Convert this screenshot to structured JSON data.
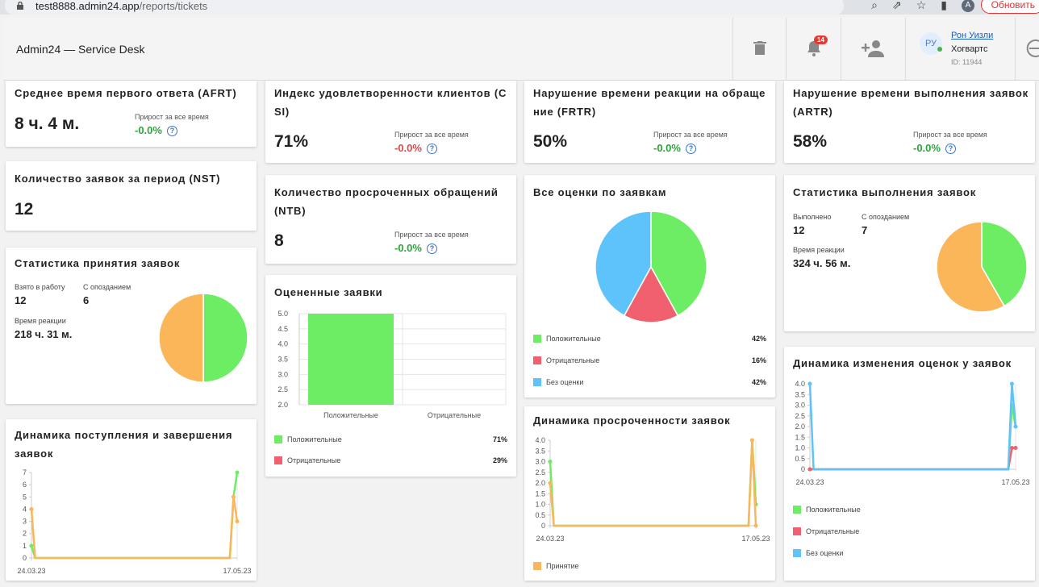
{
  "browser": {
    "url_host": "test8888.admin24.app",
    "url_path": "/reports/tickets",
    "profile_letter": "A",
    "refresh_label": "Обновить"
  },
  "header": {
    "title": "Admin24 — Service Desk",
    "notif_count": "14",
    "user": {
      "initials": "РУ",
      "name": "Рон Уизли",
      "org": "Хогвартс",
      "id": "ID: 11944"
    }
  },
  "growth_label": "Прирост за все время",
  "afrt": {
    "title": "Среднее время первого ответа (AFRT)",
    "value": "8 ч. 4 м.",
    "growth": "-0.0%"
  },
  "csi": {
    "title": "Индекс удовлетворенности клиентов (CSI)",
    "value": "71%",
    "growth": "-0.0%"
  },
  "frtr": {
    "title": "Нарушение времени реакции на обращение (FRTR)",
    "value": "50%",
    "growth": "-0.0%"
  },
  "artr": {
    "title": "Нарушение времени выполнения заявок (ARTR)",
    "value": "58%",
    "growth": "-0.0%"
  },
  "nst": {
    "title": "Количество заявок за период (NST)",
    "value": "12"
  },
  "ntb": {
    "title": "Количество просроченных обращений (NTB)",
    "value": "8",
    "growth": "-0.0%"
  },
  "accept_stats": {
    "title": "Статистика принятия заявок",
    "taken_label": "Взято в работу",
    "taken": "12",
    "late_label": "С опозданием",
    "late": "6",
    "reaction_label": "Время реакции",
    "reaction": "218 ч. 31 м."
  },
  "exec_stats": {
    "title": "Статистика выполнения заявок",
    "done_label": "Выполнено",
    "done": "12",
    "late_label": "С опозданием",
    "late": "7",
    "reaction_label": "Время реакции",
    "reaction": "324 ч. 56 м."
  },
  "rated": {
    "title": "Оцененные заявки",
    "legend": [
      {
        "label": "Положительные",
        "pct": "71%"
      },
      {
        "label": "Отрицательные",
        "pct": "29%"
      }
    ]
  },
  "all_ratings": {
    "title": "Все оценки по заявкам",
    "legend": [
      {
        "label": "Положительные",
        "pct": "42%"
      },
      {
        "label": "Отрицательные",
        "pct": "16%"
      },
      {
        "label": "Без оценки",
        "pct": "42%"
      }
    ]
  },
  "flow": {
    "title": "Динамика поступления и завершения заявок"
  },
  "overdue": {
    "title": "Динамика просроченности заявок",
    "legend": [
      {
        "label": "Принятие"
      }
    ]
  },
  "ratings_dyn": {
    "title": "Динамика изменения оценок у заявок",
    "legend": [
      {
        "label": "Положительные"
      },
      {
        "label": "Отрицательные"
      },
      {
        "label": "Без оценки"
      }
    ]
  },
  "colors": {
    "green": "#6ded63",
    "orange": "#fbb65a",
    "red": "#f0606e",
    "blue": "#5ec3fb"
  },
  "chart_data": [
    {
      "id": "accept_pie",
      "type": "pie",
      "categories": [
        "Взято в работу",
        "С опозданием"
      ],
      "values": [
        6,
        6
      ],
      "colors": [
        "#6ded63",
        "#fbb65a"
      ]
    },
    {
      "id": "exec_pie",
      "type": "pie",
      "categories": [
        "Выполнено",
        "С опозданием"
      ],
      "values": [
        5,
        7
      ],
      "colors": [
        "#6ded63",
        "#fbb65a"
      ]
    },
    {
      "id": "ratings_pie",
      "type": "pie",
      "categories": [
        "Положительные",
        "Отрицательные",
        "Без оценки"
      ],
      "values": [
        42,
        16,
        42
      ],
      "colors": [
        "#6ded63",
        "#f0606e",
        "#5ec3fb"
      ]
    },
    {
      "id": "rated_bar",
      "type": "bar",
      "categories": [
        "Положительные",
        "Отрицательные"
      ],
      "values": [
        5,
        2
      ],
      "ylim": [
        2,
        5
      ],
      "yticks": [
        "2.0",
        "2.5",
        "3.0",
        "3.5",
        "4.0",
        "4.5",
        "5.0"
      ],
      "colors": [
        "#6ded63",
        "#f0606e"
      ]
    },
    {
      "id": "flow_line",
      "type": "line",
      "x_start": "24.03.23",
      "x_end": "17.05.23",
      "ylim": [
        0,
        7
      ],
      "yticks": [
        "0",
        "1",
        "2",
        "3",
        "4",
        "5",
        "6",
        "7"
      ],
      "series": [
        {
          "values": [
            {
              "x": 0,
              "y": 1
            },
            {
              "x": 1,
              "y": 0
            },
            {
              "x": 54,
              "y": 0
            },
            {
              "x": 55,
              "y": 5
            },
            {
              "x": 56,
              "y": 7
            }
          ],
          "color": "#6ded63"
        },
        {
          "values": [
            {
              "x": 0,
              "y": 4
            },
            {
              "x": 1,
              "y": 0
            },
            {
              "x": 54,
              "y": 0
            },
            {
              "x": 55,
              "y": 5
            },
            {
              "x": 56,
              "y": 3
            }
          ],
          "color": "#fbb65a"
        }
      ]
    },
    {
      "id": "overdue_line",
      "type": "line",
      "x_start": "24.03.23",
      "x_end": "17.05.23",
      "ylim": [
        0,
        4
      ],
      "yticks": [
        "0",
        "0.5",
        "1.0",
        "1.5",
        "2.0",
        "2.5",
        "3.0",
        "3.5",
        "4.0"
      ],
      "series": [
        {
          "values": [
            {
              "x": 0,
              "y": 3
            },
            {
              "x": 1,
              "y": 0
            },
            {
              "x": 54,
              "y": 0
            },
            {
              "x": 55,
              "y": 4
            },
            {
              "x": 56,
              "y": 1
            }
          ],
          "color": "#6ded63"
        },
        {
          "values": [
            {
              "x": 0,
              "y": 2
            },
            {
              "x": 1,
              "y": 0
            },
            {
              "x": 54,
              "y": 0
            },
            {
              "x": 55,
              "y": 4
            },
            {
              "x": 56,
              "y": 0
            }
          ],
          "color": "#fbb65a"
        }
      ]
    },
    {
      "id": "ratings_line",
      "type": "line",
      "x_start": "24.03.23",
      "x_end": "17.05.23",
      "ylim": [
        0,
        4
      ],
      "yticks": [
        "0",
        "0.5",
        "1.0",
        "1.5",
        "2.0",
        "2.5",
        "3.0",
        "3.5",
        "4.0"
      ],
      "series": [
        {
          "values": [
            {
              "x": 0,
              "y": 0
            },
            {
              "x": 54,
              "y": 0
            },
            {
              "x": 55,
              "y": 3
            },
            {
              "x": 56,
              "y": 2
            }
          ],
          "color": "#6ded63"
        },
        {
          "values": [
            {
              "x": 0,
              "y": 0
            },
            {
              "x": 54,
              "y": 0
            },
            {
              "x": 55,
              "y": 1
            },
            {
              "x": 56,
              "y": 1
            }
          ],
          "color": "#f0606e"
        },
        {
          "values": [
            {
              "x": 0,
              "y": 4
            },
            {
              "x": 1,
              "y": 0
            },
            {
              "x": 54,
              "y": 0
            },
            {
              "x": 55,
              "y": 4
            },
            {
              "x": 56,
              "y": 2
            }
          ],
          "color": "#5ec3fb"
        }
      ]
    }
  ]
}
